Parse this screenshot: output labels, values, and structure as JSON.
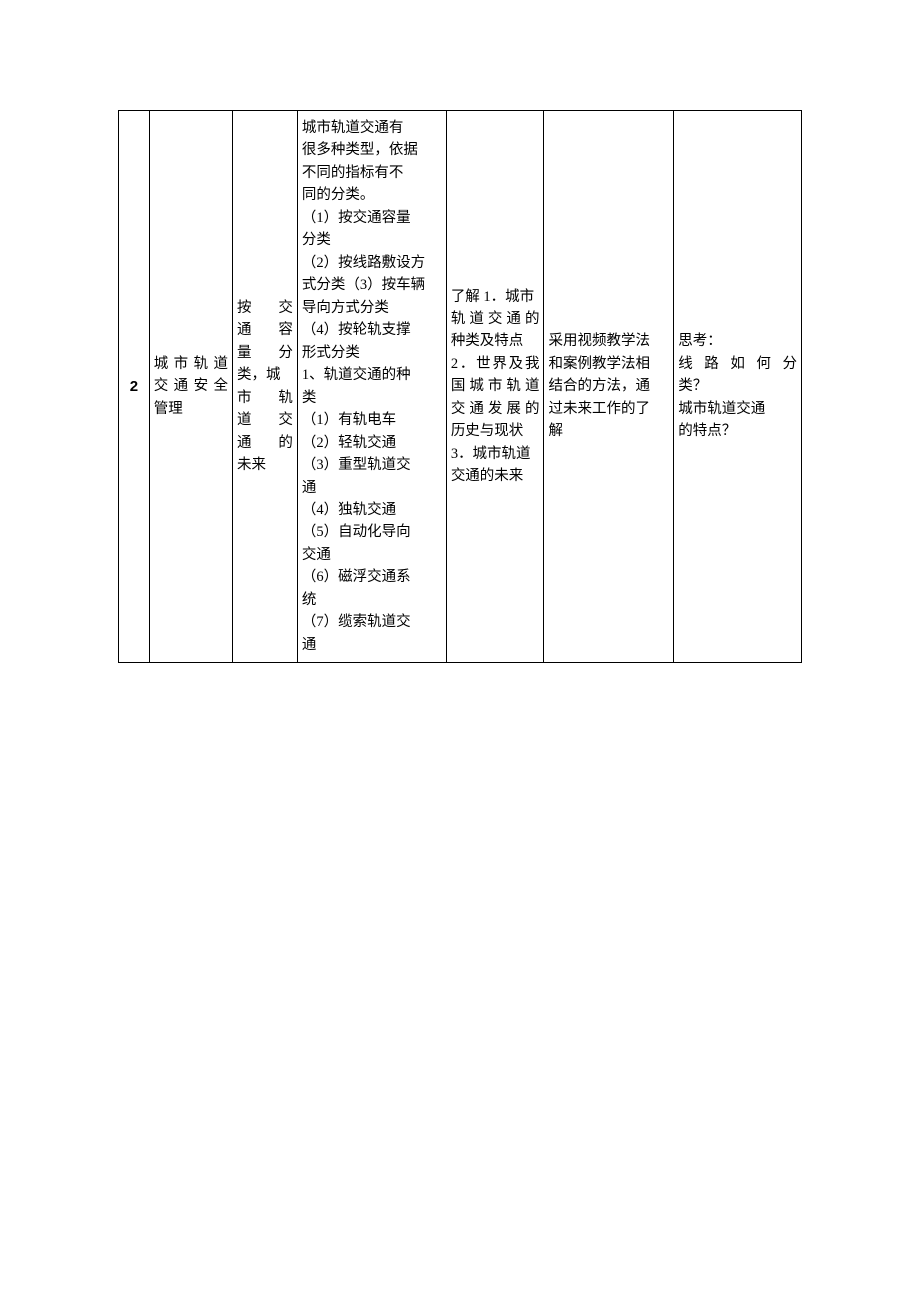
{
  "row": {
    "index": "2",
    "col2_lines": [
      {
        "text": "城市轨道",
        "justify": true
      },
      {
        "text": "交通安全",
        "justify": true
      },
      {
        "text": "管理",
        "justify": false
      }
    ],
    "col3_lines": [
      {
        "text": "按交",
        "justify": true
      },
      {
        "text": "通容",
        "justify": true
      },
      {
        "text": "量分",
        "justify": true
      },
      {
        "text": "类，城",
        "justify": false
      },
      {
        "text": "市轨",
        "justify": true
      },
      {
        "text": "道交",
        "justify": true
      },
      {
        "text": "通的",
        "justify": true
      },
      {
        "text": "未来",
        "justify": false
      }
    ],
    "col4_lines": [
      {
        "text": "城市轨道交通有",
        "justify": false
      },
      {
        "text": "很多种类型，依据",
        "justify": false
      },
      {
        "text": "不同的指标有不",
        "justify": false
      },
      {
        "text": "同的分类。",
        "justify": false
      },
      {
        "text": "（1）按交通容量",
        "justify": false
      },
      {
        "text": "分类",
        "justify": false
      },
      {
        "text": "（2）按线路敷设方",
        "justify": false
      },
      {
        "text": "式分类（3）按车辆",
        "justify": false
      },
      {
        "text": "导向方式分类",
        "justify": false
      },
      {
        "text": "（4）按轮轨支撑",
        "justify": false
      },
      {
        "text": "形式分类",
        "justify": false
      },
      {
        "text": "1、轨道交通的种",
        "justify": false
      },
      {
        "text": "类",
        "justify": false
      },
      {
        "text": "（1）有轨电车",
        "justify": false
      },
      {
        "text": "（2）轻轨交通",
        "justify": false
      },
      {
        "text": "（3）重型轨道交",
        "justify": false
      },
      {
        "text": "通",
        "justify": false
      },
      {
        "text": "（4）独轨交通",
        "justify": false
      },
      {
        "text": "（5）自动化导向",
        "justify": false
      },
      {
        "text": "交通",
        "justify": false
      },
      {
        "text": "（6）磁浮交通系",
        "justify": false
      },
      {
        "text": "统",
        "justify": false
      },
      {
        "text": "（7）缆索轨道交",
        "justify": false
      },
      {
        "text": "通",
        "justify": false
      }
    ],
    "col5_lines": [
      {
        "text": "了解 1．城市",
        "justify": false
      },
      {
        "text": "轨道交通的",
        "justify": true
      },
      {
        "text": "种类及特点",
        "justify": false
      },
      {
        "text": "2．世界及我",
        "justify": true
      },
      {
        "text": "国城市轨道",
        "justify": true
      },
      {
        "text": "交通发展的",
        "justify": true
      },
      {
        "text": "历史与现状",
        "justify": false
      },
      {
        "text": "3．城市轨道",
        "justify": false
      },
      {
        "text": "交通的未来",
        "justify": false
      }
    ],
    "col6_lines": [
      {
        "text": "采用视频教学法",
        "justify": false
      },
      {
        "text": "和案例教学法相",
        "justify": false
      },
      {
        "text": "结合的方法，通",
        "justify": false
      },
      {
        "text": "过未来工作的了",
        "justify": false
      },
      {
        "text": "解",
        "justify": false
      }
    ],
    "col7_lines": [
      {
        "text": "思考：",
        "justify": false
      },
      {
        "text": "线路如何分",
        "justify": true
      },
      {
        "text": "类？",
        "justify": false
      },
      {
        "text": "城市轨道交通",
        "justify": false
      },
      {
        "text": "的特点？",
        "justify": false
      }
    ]
  }
}
